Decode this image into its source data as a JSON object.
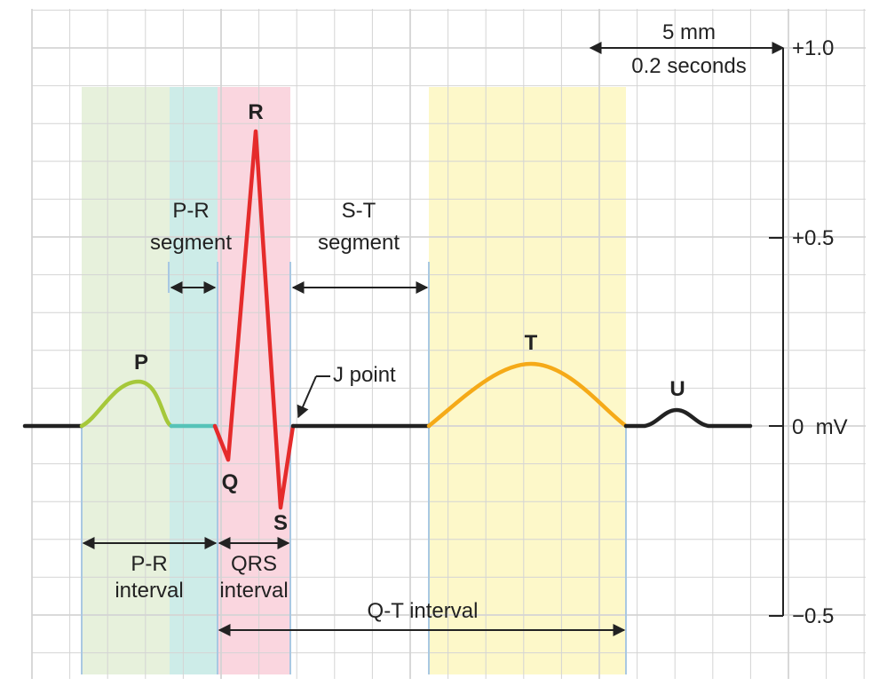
{
  "scale": {
    "mm": "5 mm",
    "seconds": "0.2 seconds"
  },
  "axis": {
    "top": "+1.0",
    "mid": "+0.5",
    "zero": "0  mV",
    "bottom": "−0.5"
  },
  "waves": {
    "p": "P",
    "q": "Q",
    "r": "R",
    "s": "S",
    "t": "T",
    "u": "U"
  },
  "labels": {
    "pr_segment": [
      "P-R",
      "segment"
    ],
    "st_segment": [
      "S-T",
      "segment"
    ],
    "j_point": "J point",
    "pr_interval": [
      "P-R",
      "interval"
    ],
    "qrs_interval": [
      "QRS",
      "interval"
    ],
    "qt_interval": "Q-T interval"
  },
  "colors": {
    "p_wave": "#a6c83a",
    "pr_segment": "#56c3b8",
    "qrs": "#e52b2b",
    "t_wave": "#f5aa18",
    "baseline": "#222222",
    "pr_band": "#e7f1dc",
    "pr_segment_band": "#cdece8",
    "qrs_band": "#fad6df",
    "t_band": "#fdf8c9",
    "grid": "#d4d4d4",
    "boundary": "#a9c8e2"
  }
}
